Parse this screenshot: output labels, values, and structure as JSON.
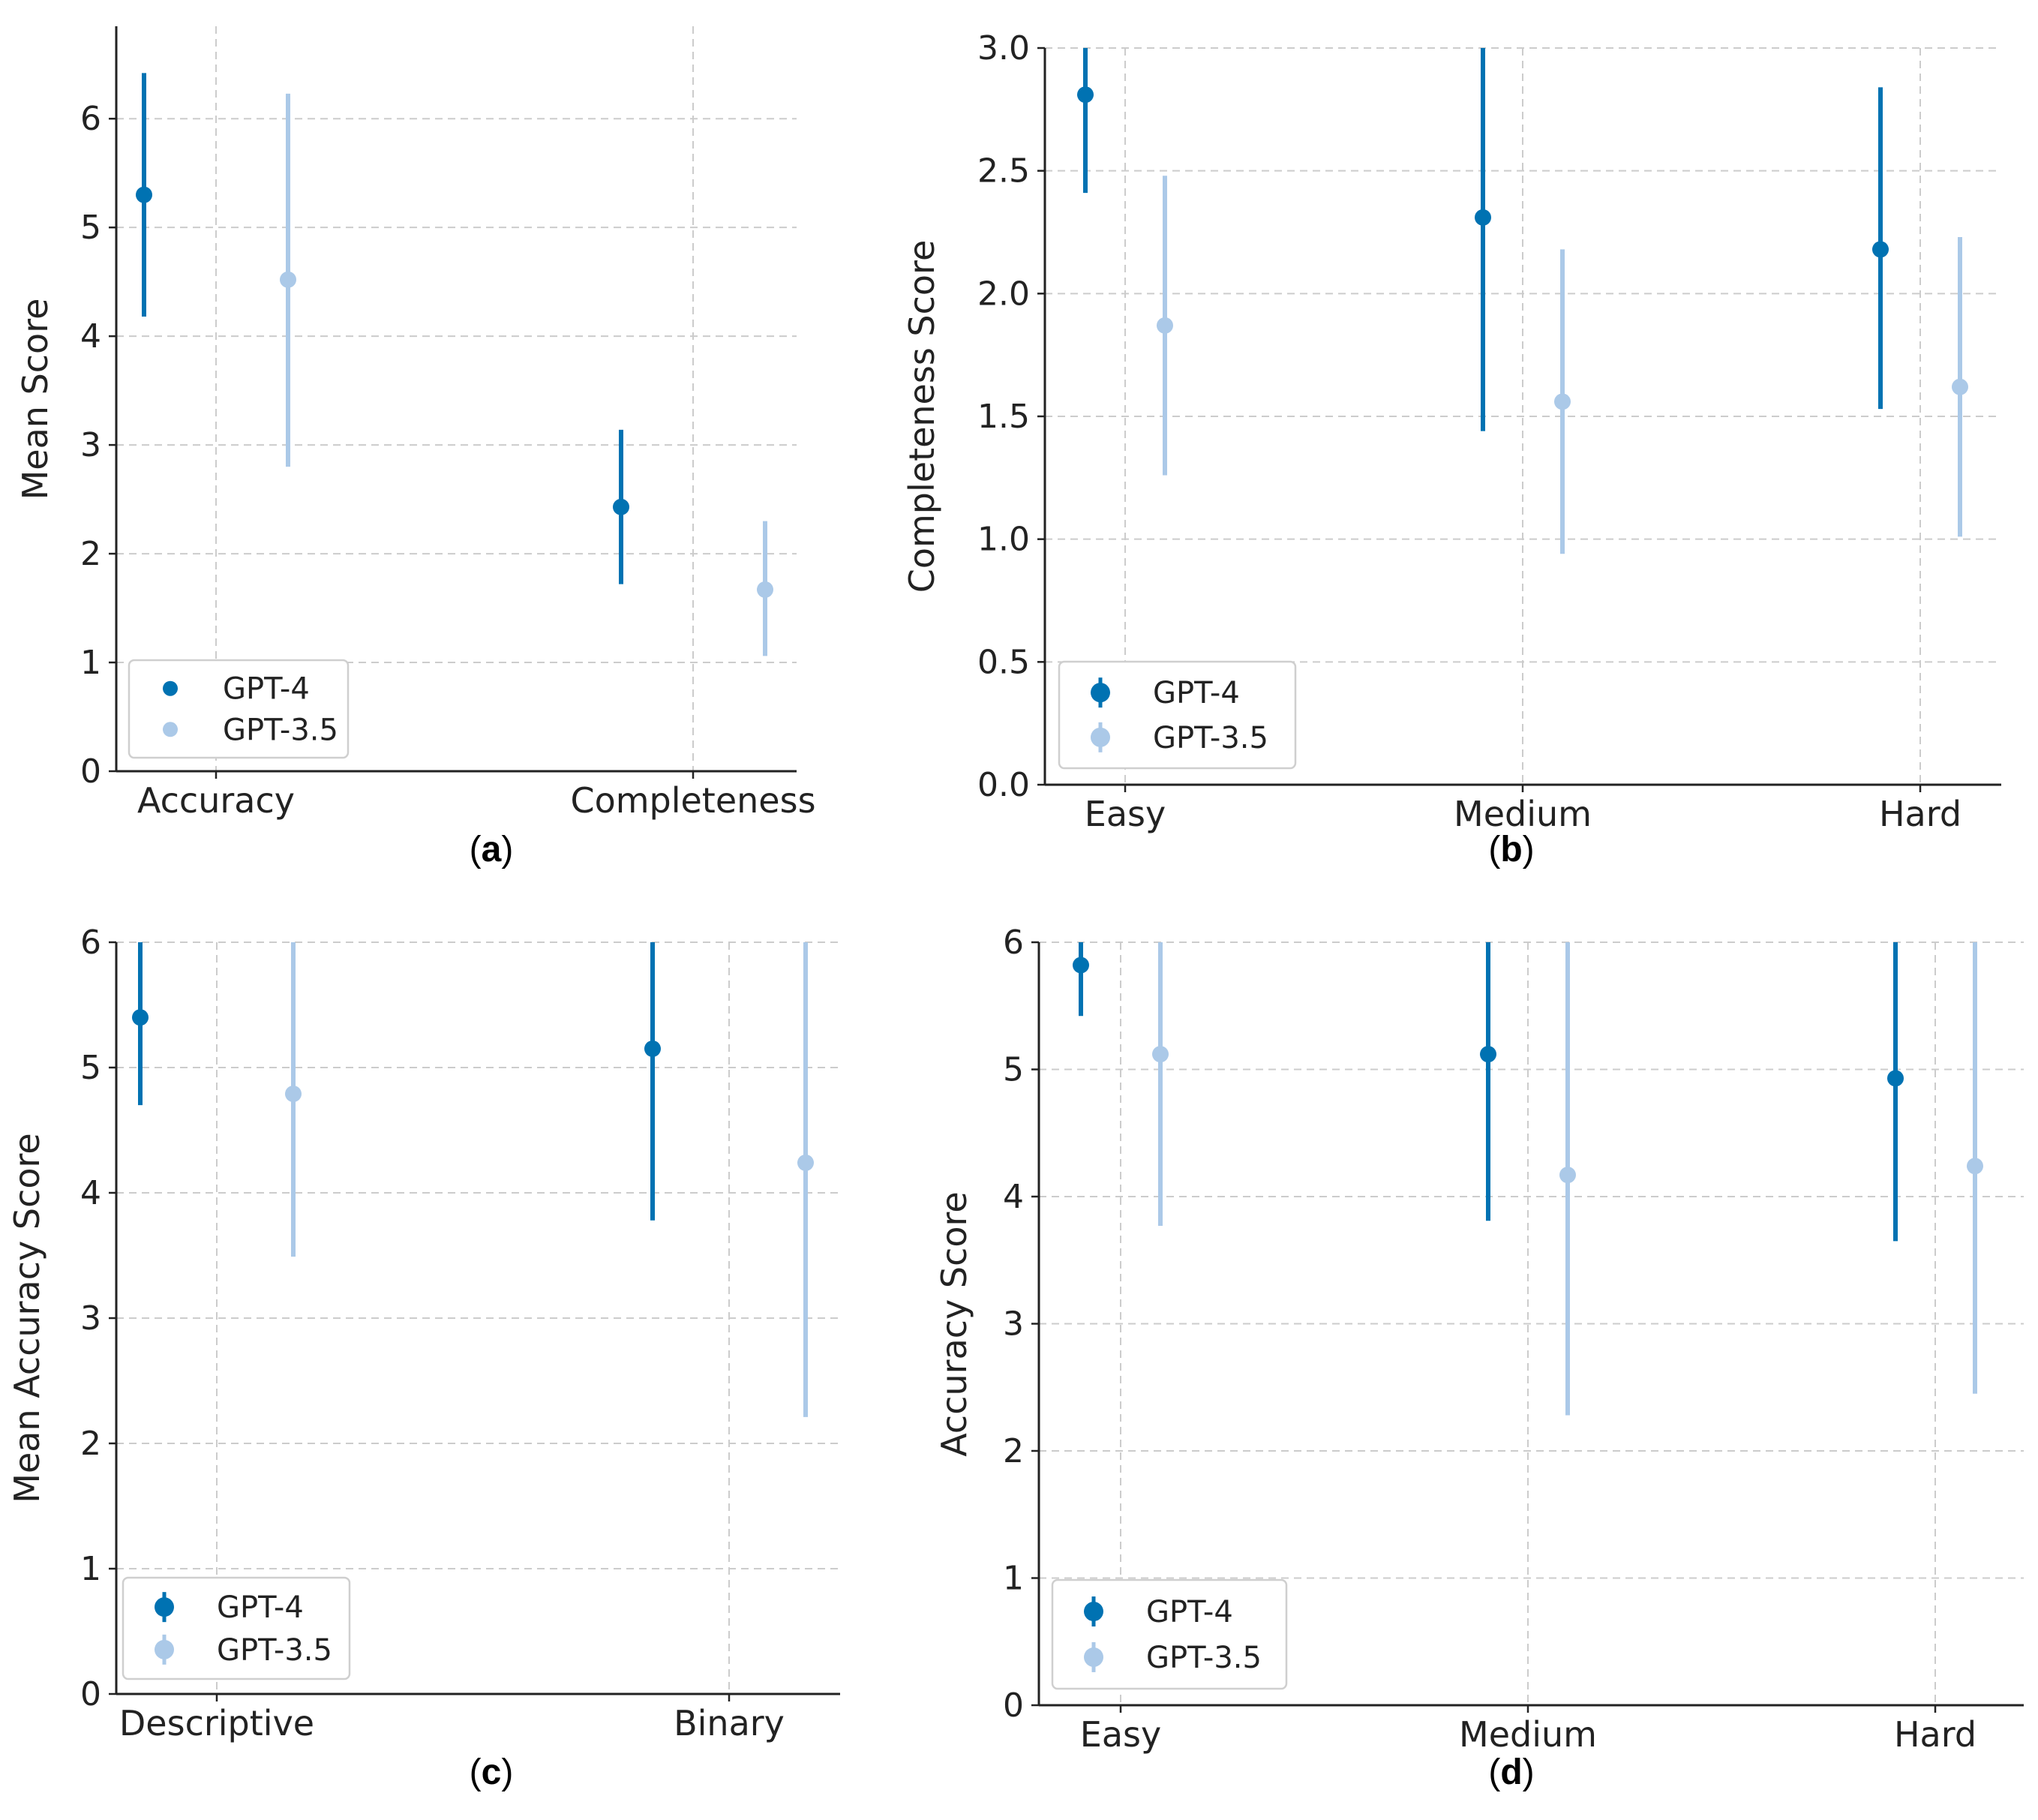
{
  "colors": {
    "gpt4": "#0072b2",
    "gpt35": "#abc9e8",
    "grid": "#cccccc",
    "axis": "#222222",
    "text": "#222222",
    "legend_border": "#cfcfcf"
  },
  "chart_data": [
    {
      "type": "scatter",
      "panel_label": "(a)",
      "panel_letter": "a",
      "title": "",
      "xlabel": "",
      "ylabel": "Mean Score",
      "categories": [
        "Accuracy",
        "Completeness"
      ],
      "ylim": [
        0,
        6.85
      ],
      "yticks": [
        0,
        1,
        2,
        3,
        4,
        5,
        6
      ],
      "ytick_labels": [
        "0",
        "1",
        "2",
        "3",
        "4",
        "5",
        "6"
      ],
      "grid": true,
      "legend": {
        "position": "bottom-left",
        "marker": "dot",
        "entries": [
          "GPT-4",
          "GPT-3.5"
        ]
      },
      "series": [
        {
          "name": "GPT-4",
          "values": [
            5.3,
            2.43
          ],
          "err_low": [
            4.18,
            1.72
          ],
          "err_high": [
            6.42,
            3.14
          ]
        },
        {
          "name": "GPT-3.5",
          "values": [
            4.52,
            1.67
          ],
          "err_low": [
            2.8,
            1.06
          ],
          "err_high": [
            6.23,
            2.3
          ]
        }
      ]
    },
    {
      "type": "scatter",
      "panel_label": "(b)",
      "panel_letter": "b",
      "title": "",
      "xlabel": "",
      "ylabel": "Completeness Score",
      "categories": [
        "Easy",
        "Medium",
        "Hard"
      ],
      "ylim": [
        0,
        3.0
      ],
      "yticks": [
        0,
        0.5,
        1.0,
        1.5,
        2.0,
        2.5,
        3.0
      ],
      "ytick_labels": [
        "0.0",
        "0.5",
        "1.0",
        "1.5",
        "2.0",
        "2.5",
        "3.0"
      ],
      "grid": true,
      "legend": {
        "position": "bottom-left",
        "marker": "errorbar",
        "entries": [
          "GPT-4",
          "GPT-3.5"
        ]
      },
      "series": [
        {
          "name": "GPT-4",
          "values": [
            2.81,
            2.31,
            2.18
          ],
          "err_low": [
            2.41,
            1.44,
            1.53
          ],
          "err_high": [
            3.0,
            3.0,
            2.84
          ]
        },
        {
          "name": "GPT-3.5",
          "values": [
            1.87,
            1.56,
            1.62
          ],
          "err_low": [
            1.26,
            0.94,
            1.01
          ],
          "err_high": [
            2.48,
            2.18,
            2.23
          ]
        }
      ]
    },
    {
      "type": "scatter",
      "panel_label": "(c)",
      "panel_letter": "c",
      "title": "",
      "xlabel": "",
      "ylabel": "Mean Accuracy Score",
      "categories": [
        "Descriptive",
        "Binary"
      ],
      "ylim": [
        0,
        6
      ],
      "yticks": [
        0,
        1,
        2,
        3,
        4,
        5,
        6
      ],
      "ytick_labels": [
        "0",
        "1",
        "2",
        "3",
        "4",
        "5",
        "6"
      ],
      "grid": true,
      "legend": {
        "position": "bottom-left",
        "marker": "errorbar",
        "entries": [
          "GPT-4",
          "GPT-3.5"
        ]
      },
      "series": [
        {
          "name": "GPT-4",
          "values": [
            5.4,
            5.15
          ],
          "err_low": [
            4.7,
            3.78
          ],
          "err_high": [
            6.0,
            6.0
          ]
        },
        {
          "name": "GPT-3.5",
          "values": [
            4.79,
            4.24
          ],
          "err_low": [
            3.49,
            2.21
          ],
          "err_high": [
            6.0,
            6.0
          ]
        }
      ]
    },
    {
      "type": "scatter",
      "panel_label": "(d)",
      "panel_letter": "d",
      "title": "",
      "xlabel": "",
      "ylabel": "Accuracy Score",
      "categories": [
        "Easy",
        "Medium",
        "Hard"
      ],
      "ylim": [
        0,
        6
      ],
      "yticks": [
        0,
        1,
        2,
        3,
        4,
        5,
        6
      ],
      "ytick_labels": [
        "0",
        "1",
        "2",
        "3",
        "4",
        "5",
        "6"
      ],
      "grid": true,
      "legend": {
        "position": "bottom-left",
        "marker": "errorbar",
        "entries": [
          "GPT-4",
          "GPT-3.5"
        ]
      },
      "series": [
        {
          "name": "GPT-4",
          "values": [
            5.82,
            5.12,
            4.93
          ],
          "err_low": [
            5.42,
            3.81,
            3.65
          ],
          "err_high": [
            6.0,
            6.0,
            6.0
          ]
        },
        {
          "name": "GPT-3.5",
          "values": [
            5.12,
            4.17,
            4.24
          ],
          "err_low": [
            3.77,
            2.28,
            2.45
          ],
          "err_high": [
            6.0,
            6.0,
            6.0
          ]
        }
      ]
    }
  ]
}
